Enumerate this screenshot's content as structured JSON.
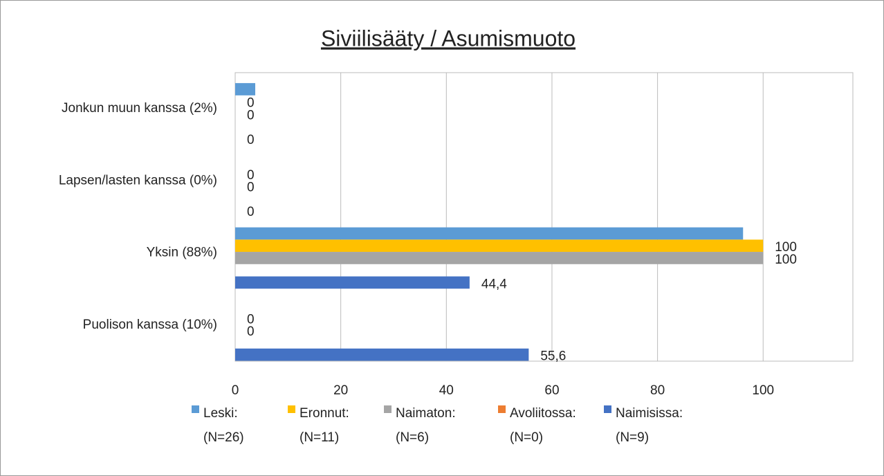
{
  "chart_data": {
    "type": "bar",
    "orientation": "horizontal",
    "title": "Siviilisääty / Asumismuoto",
    "categories": [
      "Jonkun muun kanssa (2%)",
      "Lapsen/lasten kanssa (0%)",
      "Yksin (88%)",
      "Puolison kanssa (10%)"
    ],
    "series": [
      {
        "name": "Leski: (N=26)",
        "color": "#5b9bd5",
        "values": [
          3.8,
          0,
          96.2,
          0
        ],
        "show_labels": false
      },
      {
        "name": "Eronnut: (N=11)",
        "color": "#ffc000",
        "values": [
          0,
          0,
          100,
          0
        ],
        "show_labels": true
      },
      {
        "name": "Naimaton: (N=6)",
        "color": "#a5a5a5",
        "values": [
          0,
          0,
          100,
          0
        ],
        "show_labels": true
      },
      {
        "name": "Avoliitossa: (N=0)",
        "color": "#ed7d31",
        "values": [
          null,
          null,
          null,
          null
        ],
        "show_labels": true
      },
      {
        "name": "Naimisissa: (N=9)",
        "color": "#4472c4",
        "values": [
          0,
          0,
          44.4,
          55.6
        ],
        "value_labels": [
          "0",
          "0",
          "44,4",
          "55,6"
        ],
        "show_labels": true
      }
    ],
    "xlim": [
      0,
      117
    ],
    "xticks": [
      0,
      20,
      40,
      60,
      80,
      100
    ],
    "grid": true,
    "legend": "bottom"
  }
}
